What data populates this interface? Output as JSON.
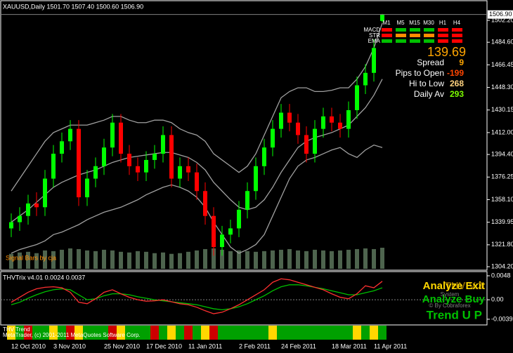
{
  "chart_data": [
    {
      "type": "candlestick",
      "title": "XAUUSD,Daily  1501.70 1507.40 1500.60 1506.90",
      "categories": [
        null,
        "12 Oct 2010",
        null,
        null,
        null,
        null,
        "3 Nov 2010",
        null,
        null,
        null,
        null,
        null,
        "25 Nov 2010",
        null,
        null,
        null,
        null,
        "17 Dec 2010",
        null,
        null,
        null,
        null,
        "11 Jan 2011",
        null,
        null,
        null,
        null,
        null,
        "2 Feb 2011",
        null,
        null,
        null,
        null,
        "24 Feb 2011",
        null,
        null,
        null,
        null,
        null,
        "18 Mar 2011",
        null,
        null,
        null,
        null,
        "11 Apr 2011"
      ],
      "open": [
        1335,
        1340,
        1345,
        1355,
        1352,
        1375,
        1395,
        1405,
        1415,
        1360,
        1375,
        1385,
        1400,
        1420,
        1395,
        1385,
        1380,
        1390,
        1395,
        1410,
        1375,
        1385,
        1380,
        1365,
        1345,
        1320,
        1330,
        1335,
        1350,
        1365,
        1385,
        1400,
        1415,
        1428,
        1420,
        1410,
        1395,
        1415,
        1425,
        1420,
        1415,
        1430,
        1450,
        1460,
        1501.7
      ],
      "high": [
        1347,
        1352,
        1362,
        1364,
        1382,
        1402,
        1412,
        1422,
        1422,
        1382,
        1392,
        1407,
        1427,
        1427,
        1402,
        1392,
        1397,
        1402,
        1417,
        1417,
        1392,
        1392,
        1387,
        1372,
        1352,
        1337,
        1342,
        1357,
        1372,
        1392,
        1407,
        1422,
        1435,
        1435,
        1427,
        1417,
        1422,
        1432,
        1432,
        1427,
        1437,
        1457,
        1467,
        1487,
        1507.4
      ],
      "low": [
        1328,
        1333,
        1338,
        1345,
        1345,
        1368,
        1388,
        1398,
        1353,
        1353,
        1368,
        1378,
        1393,
        1388,
        1378,
        1373,
        1373,
        1383,
        1388,
        1368,
        1368,
        1373,
        1358,
        1338,
        1313,
        1313,
        1323,
        1328,
        1343,
        1358,
        1378,
        1393,
        1408,
        1413,
        1403,
        1388,
        1388,
        1408,
        1413,
        1408,
        1408,
        1423,
        1443,
        1453,
        1500.6
      ],
      "close": [
        1340,
        1345,
        1355,
        1352,
        1375,
        1395,
        1405,
        1415,
        1360,
        1375,
        1385,
        1400,
        1420,
        1395,
        1385,
        1380,
        1390,
        1395,
        1410,
        1375,
        1385,
        1380,
        1365,
        1345,
        1320,
        1330,
        1335,
        1350,
        1365,
        1385,
        1400,
        1415,
        1428,
        1420,
        1410,
        1395,
        1415,
        1425,
        1420,
        1415,
        1430,
        1450,
        1460,
        1480,
        1506.9
      ],
      "up_color": "#00ff00",
      "down_color": "#ff0000",
      "volume": [
        22,
        24,
        25,
        23,
        27,
        26,
        28,
        30,
        29,
        27,
        26,
        28,
        27,
        25,
        24,
        26,
        25,
        23,
        24,
        22,
        23,
        25,
        27,
        29,
        30,
        28,
        26,
        27,
        26,
        25,
        26,
        27,
        28,
        29,
        27,
        26,
        28,
        27,
        26,
        27,
        28,
        29,
        30,
        29,
        31
      ],
      "volume_color": "#6f8f6f",
      "series": [
        {
          "name": "Upper Band",
          "color": "#a0a0a0",
          "values": [
            1365,
            1375,
            1385,
            1395,
            1405,
            1412,
            1415,
            1418,
            1418,
            1418,
            1420,
            1422,
            1425,
            1425,
            1422,
            1420,
            1420,
            1422,
            1422,
            1420,
            1415,
            1412,
            1410,
            1405,
            1395,
            1390,
            1385,
            1380,
            1385,
            1395,
            1410,
            1425,
            1440,
            1445,
            1448,
            1448,
            1445,
            1445,
            1446,
            1448,
            1448,
            1455,
            1465,
            1480,
            1500
          ]
        },
        {
          "name": "Middle Band",
          "color": "#a0a0a0",
          "values": [
            1340,
            1345,
            1350,
            1356,
            1362,
            1368,
            1372,
            1375,
            1378,
            1380,
            1382,
            1385,
            1388,
            1390,
            1392,
            1393,
            1394,
            1395,
            1396,
            1396,
            1394,
            1392,
            1388,
            1382,
            1372,
            1365,
            1358,
            1352,
            1350,
            1352,
            1358,
            1368,
            1380,
            1390,
            1400,
            1405,
            1408,
            1410,
            1412,
            1415,
            1418,
            1425,
            1432,
            1442,
            1455
          ]
        },
        {
          "name": "Lower Band",
          "color": "#a0a0a0",
          "values": [
            1315,
            1318,
            1320,
            1322,
            1325,
            1330,
            1332,
            1335,
            1338,
            1342,
            1345,
            1348,
            1350,
            1352,
            1355,
            1358,
            1362,
            1365,
            1368,
            1370,
            1368,
            1365,
            1360,
            1352,
            1340,
            1330,
            1320,
            1315,
            1318,
            1322,
            1330,
            1345,
            1360,
            1375,
            1385,
            1390,
            1392,
            1395,
            1398,
            1400,
            1395,
            1392,
            1398,
            1402,
            1400
          ]
        }
      ],
      "current_price": {
        "value": 1506.9,
        "label": "1506.90"
      },
      "ylim": [
        1301.4,
        1516.3
      ],
      "yticks": [
        {
          "value": 1304.2,
          "label": "1304.20"
        },
        {
          "value": 1321.8,
          "label": "1321.80"
        },
        1339.95,
        {
          "value": 1358.1,
          "label": "1358.10"
        },
        1376.25,
        {
          "value": 1394.4,
          "label": "1394.40"
        },
        {
          "value": 1412,
          "label": "1412.00"
        },
        1430.15,
        {
          "value": 1448.3,
          "label": "1448.30"
        },
        1466.45,
        {
          "value": 1484.6,
          "label": "1484.60"
        },
        {
          "value": 1502.2,
          "label": "1502.20"
        }
      ]
    },
    {
      "type": "line",
      "title": "THVTrix v4.01 0.0024 0.0037",
      "series": [
        {
          "name": "Trix Signal",
          "color": "#00c000",
          "values": [
            -0.001,
            -0.0005,
            0.0003,
            0.001,
            0.0016,
            0.002,
            0.0022,
            0.002,
            0.001,
            0.0,
            0.0002,
            0.0008,
            0.0012,
            0.0012,
            0.001,
            0.0006,
            0.0003,
            0.0,
            -0.0002,
            -0.0004,
            -0.0006,
            -0.0008,
            -0.001,
            -0.0014,
            -0.0018,
            -0.002,
            -0.0018,
            -0.0014,
            -0.0008,
            0.0,
            0.0008,
            0.0018,
            0.0026,
            0.003,
            0.003,
            0.0028,
            0.0025,
            0.0022,
            0.0018,
            0.0014,
            0.001,
            0.001,
            0.0014,
            0.0018,
            0.0024
          ]
        },
        {
          "name": "Trix",
          "color": "#ff3030",
          "values": [
            -0.0005,
            0.0005,
            0.0015,
            0.0022,
            0.0025,
            0.0026,
            0.0024,
            0.0015,
            -0.0005,
            -0.0008,
            0.0002,
            0.0015,
            0.002,
            0.0012,
            0.0005,
            0.0,
            -0.0003,
            -0.0002,
            0.0,
            -0.0004,
            -0.0008,
            -0.001,
            -0.0015,
            -0.0022,
            -0.0028,
            -0.0025,
            -0.0018,
            -0.001,
            0.0,
            0.001,
            0.002,
            0.0035,
            0.0042,
            0.004,
            0.0035,
            0.003,
            0.0025,
            0.002,
            0.0012,
            0.0005,
            0.0002,
            0.0012,
            0.0028,
            0.0024,
            0.0037
          ]
        }
      ],
      "ylim": [
        -0.0049,
        0.0055
      ],
      "yticks": [
        0.0048,
        {
          "value": 0,
          "label": "0.00"
        },
        -0.0039
      ]
    }
  ],
  "trend_strip": {
    "title": "THV Trend",
    "colors": [
      "#ffd700",
      "#00a000",
      "#cc0000",
      "#00a000",
      "#00a000",
      "#ffd700",
      "#00a000",
      "#cc0000",
      "#ffd700",
      "#00a000",
      "#00a000",
      "#00a000",
      "#cc0000",
      "#ffd700",
      "#00a000",
      "#00a000",
      "#00a000",
      "#cc0000",
      "#00a000",
      "#ffd700",
      "#00a000",
      "#cc0000",
      "#00a000",
      "#ffd700",
      "#cc0000",
      "#00a000",
      "#00a000",
      "#00a000",
      "#00a000",
      "#00a000",
      "#00a000",
      "#ffd700",
      "#00a000",
      "#00a000",
      "#00a000",
      "#00a000",
      "#00a000",
      "#00a000",
      "#00a000",
      "#00a000",
      "#00a000",
      "#ffd700",
      "#00a000",
      "#ffd700",
      "#00a000"
    ]
  },
  "copyright": "MetaTrader, (c) 2001-2011 MetaQuotes Software Corp.",
  "signal_bars": {
    "credit": "Signal Bars by cja",
    "timeframes": [
      "M1",
      "M5",
      "M15",
      "M30",
      "H1",
      "H4"
    ],
    "rows": [
      {
        "name": "MACD",
        "colors": [
          "#ff0000",
          "#00c000",
          "#00c000",
          "#00c000",
          "#ff0000",
          "#ff0000"
        ]
      },
      {
        "name": "STR",
        "colors": [
          "#ff0000",
          "#ff8c00",
          "#ff8c00",
          "#ff8c00",
          "#ff0000",
          "#ff0000"
        ]
      },
      {
        "name": "EMA",
        "colors": [
          "#00c000",
          "#00c000",
          "#00c000",
          "#00c000",
          "#ff0000",
          "#ff0000"
        ]
      }
    ]
  },
  "stats": {
    "price": "139.69",
    "rows": [
      {
        "label": "Spread",
        "value": 9,
        "color": "#ffa500"
      },
      {
        "label": "Pips to Open",
        "value": -199,
        "color": "#ff4500"
      },
      {
        "label": "Hi to Low",
        "value": 268,
        "color": "#ffd27f"
      },
      {
        "label": "Daily Av",
        "value": 293,
        "color": "#7cfc00"
      }
    ]
  },
  "system": {
    "name": "THV V.3",
    "exit": "Analyze Exit",
    "buy": "Analyze Buy",
    "label": "System",
    "author": "© By Cobraforex",
    "trend": "Trend U P"
  }
}
